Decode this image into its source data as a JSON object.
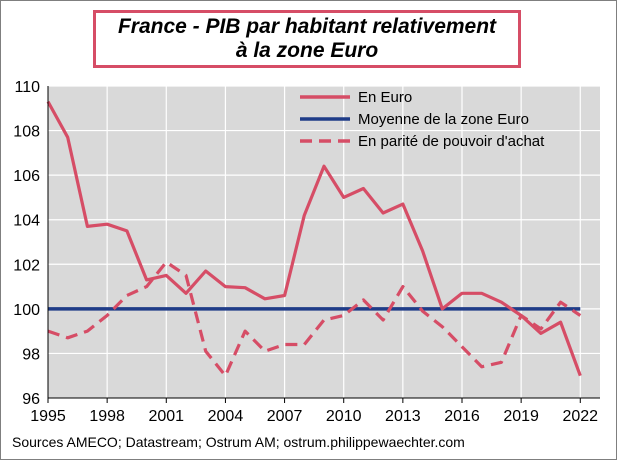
{
  "title_lines": [
    "France - PIB par habitant relativement",
    "à la zone Euro"
  ],
  "source": "Sources AMECO; Datastream;  Ostrum  AM; ostrum.philippewaechter.com",
  "colors": {
    "plot_bg": "#d9d9d9",
    "grid": "#ffffff",
    "red": "#d64d66",
    "blue": "#1f3c88",
    "title_border": "#d64d66"
  },
  "chart_data": {
    "type": "line",
    "title": "France - PIB par habitant relativement à la zone Euro",
    "xlabel": "",
    "ylabel": "",
    "xlim": [
      1995,
      2023
    ],
    "ylim": [
      96,
      110
    ],
    "x_ticks": [
      "1995",
      "1998",
      "2001",
      "2004",
      "2007",
      "2010",
      "2013",
      "2016",
      "2019",
      "2022"
    ],
    "y_ticks": [
      "96",
      "98",
      "100",
      "102",
      "104",
      "106",
      "108",
      "110"
    ],
    "grid": true,
    "legend_position": "top-right",
    "x": [
      1995,
      1996,
      1997,
      1998,
      1999,
      2000,
      2001,
      2002,
      2003,
      2004,
      2005,
      2006,
      2007,
      2008,
      2009,
      2010,
      2011,
      2012,
      2013,
      2014,
      2015,
      2016,
      2017,
      2018,
      2019,
      2020,
      2021,
      2022
    ],
    "series": [
      {
        "name": "En Euro",
        "style": "solid",
        "color": "#d64d66",
        "values": [
          109.3,
          107.7,
          103.7,
          103.8,
          103.5,
          101.3,
          101.5,
          100.7,
          101.7,
          101.0,
          100.95,
          100.45,
          100.6,
          104.2,
          106.4,
          105.0,
          105.4,
          104.3,
          104.7,
          102.6,
          100.0,
          100.7,
          100.7,
          100.3,
          99.7,
          98.9,
          99.4,
          97.0
        ]
      },
      {
        "name": "Moyenne de la zone Euro",
        "style": "solid",
        "color": "#1f3c88",
        "values": [
          100,
          100,
          100,
          100,
          100,
          100,
          100,
          100,
          100,
          100,
          100,
          100,
          100,
          100,
          100,
          100,
          100,
          100,
          100,
          100,
          100,
          100,
          100,
          100,
          100,
          100,
          100,
          100
        ]
      },
      {
        "name": "En parité de pouvoir d'achat",
        "style": "dashed",
        "color": "#d64d66",
        "values": [
          99.0,
          98.7,
          99.0,
          99.7,
          100.6,
          101.0,
          102.1,
          101.5,
          98.1,
          97.0,
          99.0,
          98.1,
          98.4,
          98.4,
          99.5,
          99.7,
          100.4,
          99.5,
          101.0,
          99.9,
          99.2,
          98.3,
          97.4,
          97.6,
          99.7,
          99.1,
          100.3,
          99.7
        ]
      }
    ]
  }
}
